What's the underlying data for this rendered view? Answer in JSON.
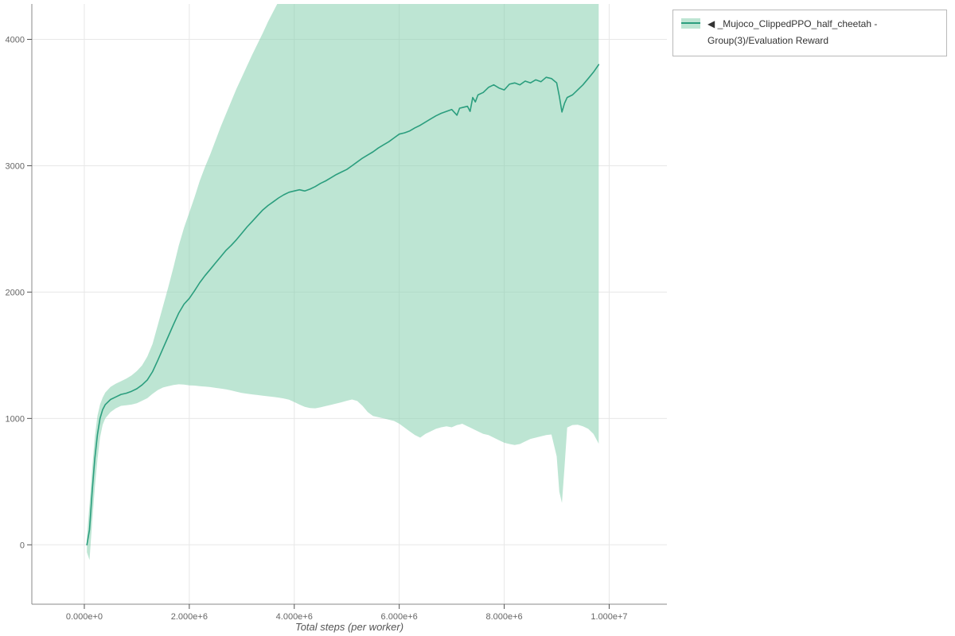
{
  "legend": {
    "label": "◀ _Mujoco_ClippedPPO_half_cheetah - Group(3)/Evaluation Reward"
  },
  "chart_data": {
    "type": "line",
    "title": "",
    "xlabel": "Total steps (per worker)",
    "ylabel": "",
    "grid": true,
    "legend_position": "top-right",
    "x_range": [
      -1000000,
      11100000
    ],
    "y_range": [
      -470,
      4280
    ],
    "x_ticks": [
      {
        "value": 0,
        "label": "0.000e+0"
      },
      {
        "value": 2000000,
        "label": "2.000e+6"
      },
      {
        "value": 4000000,
        "label": "4.000e+6"
      },
      {
        "value": 6000000,
        "label": "6.000e+6"
      },
      {
        "value": 8000000,
        "label": "8.000e+6"
      },
      {
        "value": 10000000,
        "label": "1.000e+7"
      }
    ],
    "y_ticks": [
      {
        "value": 0,
        "label": "0"
      },
      {
        "value": 1000,
        "label": "1000"
      },
      {
        "value": 2000,
        "label": "2000"
      },
      {
        "value": 3000,
        "label": "3000"
      },
      {
        "value": 4000,
        "label": "4000"
      }
    ],
    "colors": {
      "line": "#2b9e7e",
      "band": "#86cfae",
      "band_opacity": 0.55,
      "grid": "#e7e7e7",
      "axis": "#8a8a8a",
      "tick": "#555555",
      "tick_label": "#666666"
    },
    "series": [
      {
        "name": "◀ _Mujoco_ClippedPPO_half_cheetah - Group(3)/Evaluation Reward",
        "x": [
          50000,
          100000,
          150000,
          200000,
          250000,
          300000,
          350000,
          400000,
          500000,
          600000,
          700000,
          800000,
          900000,
          1000000,
          1100000,
          1200000,
          1300000,
          1400000,
          1500000,
          1600000,
          1700000,
          1800000,
          1900000,
          2000000,
          2100000,
          2200000,
          2300000,
          2400000,
          2500000,
          2600000,
          2700000,
          2800000,
          2900000,
          3000000,
          3100000,
          3200000,
          3300000,
          3400000,
          3500000,
          3600000,
          3700000,
          3800000,
          3900000,
          4000000,
          4100000,
          4200000,
          4300000,
          4400000,
          4500000,
          4600000,
          4700000,
          4800000,
          4900000,
          5000000,
          5100000,
          5200000,
          5300000,
          5400000,
          5500000,
          5600000,
          5700000,
          5800000,
          5900000,
          6000000,
          6100000,
          6200000,
          6300000,
          6400000,
          6500000,
          6600000,
          6700000,
          6800000,
          6900000,
          7000000,
          7100000,
          7150000,
          7200000,
          7300000,
          7350000,
          7400000,
          7450000,
          7500000,
          7600000,
          7700000,
          7800000,
          7900000,
          8000000,
          8100000,
          8200000,
          8300000,
          8400000,
          8500000,
          8600000,
          8700000,
          8800000,
          8900000,
          9000000,
          9050000,
          9100000,
          9150000,
          9200000,
          9300000,
          9400000,
          9500000,
          9600000,
          9700000,
          9800000
        ],
        "mean": [
          0,
          120,
          420,
          680,
          870,
          1000,
          1070,
          1110,
          1150,
          1170,
          1190,
          1200,
          1215,
          1235,
          1265,
          1305,
          1370,
          1460,
          1555,
          1650,
          1745,
          1835,
          1905,
          1950,
          2010,
          2075,
          2130,
          2180,
          2230,
          2280,
          2330,
          2370,
          2415,
          2465,
          2515,
          2560,
          2605,
          2650,
          2685,
          2715,
          2745,
          2770,
          2790,
          2800,
          2810,
          2800,
          2815,
          2835,
          2860,
          2880,
          2905,
          2930,
          2950,
          2970,
          3000,
          3030,
          3060,
          3085,
          3110,
          3140,
          3165,
          3190,
          3220,
          3250,
          3260,
          3275,
          3300,
          3320,
          3345,
          3370,
          3395,
          3415,
          3430,
          3445,
          3400,
          3455,
          3460,
          3470,
          3430,
          3540,
          3505,
          3560,
          3580,
          3620,
          3640,
          3615,
          3600,
          3645,
          3655,
          3640,
          3670,
          3655,
          3680,
          3665,
          3700,
          3690,
          3655,
          3550,
          3425,
          3495,
          3540,
          3560,
          3600,
          3640,
          3690,
          3740,
          3800
        ],
        "lower": [
          -60,
          -120,
          180,
          450,
          670,
          850,
          950,
          1000,
          1050,
          1080,
          1100,
          1105,
          1110,
          1120,
          1140,
          1160,
          1195,
          1225,
          1245,
          1255,
          1265,
          1270,
          1268,
          1262,
          1260,
          1256,
          1252,
          1248,
          1242,
          1236,
          1230,
          1222,
          1212,
          1202,
          1196,
          1190,
          1185,
          1180,
          1175,
          1170,
          1165,
          1158,
          1148,
          1130,
          1110,
          1092,
          1082,
          1080,
          1088,
          1098,
          1108,
          1118,
          1128,
          1140,
          1150,
          1138,
          1100,
          1050,
          1020,
          1010,
          1000,
          990,
          980,
          958,
          928,
          898,
          868,
          848,
          878,
          898,
          918,
          930,
          938,
          930,
          948,
          952,
          958,
          938,
          928,
          918,
          908,
          898,
          878,
          868,
          848,
          828,
          808,
          798,
          790,
          798,
          818,
          838,
          848,
          858,
          868,
          873,
          700,
          420,
          330,
          620,
          928,
          948,
          950,
          938,
          918,
          878,
          800
        ],
        "upper": [
          60,
          320,
          600,
          850,
          1020,
          1110,
          1165,
          1205,
          1250,
          1275,
          1295,
          1315,
          1340,
          1375,
          1420,
          1490,
          1590,
          1740,
          1890,
          2040,
          2200,
          2370,
          2510,
          2630,
          2750,
          2880,
          2990,
          3090,
          3200,
          3310,
          3410,
          3510,
          3610,
          3700,
          3790,
          3880,
          3965,
          4050,
          4140,
          4220,
          4300,
          4360,
          4400,
          4420,
          4420,
          4420,
          4420,
          4420,
          4420,
          4420,
          4420,
          4420,
          4420,
          4420,
          4420,
          4420,
          4420,
          4420,
          4420,
          4420,
          4420,
          4420,
          4420,
          4420,
          4420,
          4420,
          4420,
          4420,
          4420,
          4420,
          4420,
          4420,
          4420,
          4420,
          4420,
          4420,
          4420,
          4420,
          4420,
          4420,
          4420,
          4420,
          4420,
          4420,
          4420,
          4420,
          4420,
          4420,
          4420,
          4420,
          4420,
          4420,
          4420,
          4420,
          4420,
          4420,
          4420,
          4420,
          4420,
          4420,
          4420,
          4420,
          4420,
          4420,
          4420,
          4420,
          4420
        ]
      }
    ]
  }
}
